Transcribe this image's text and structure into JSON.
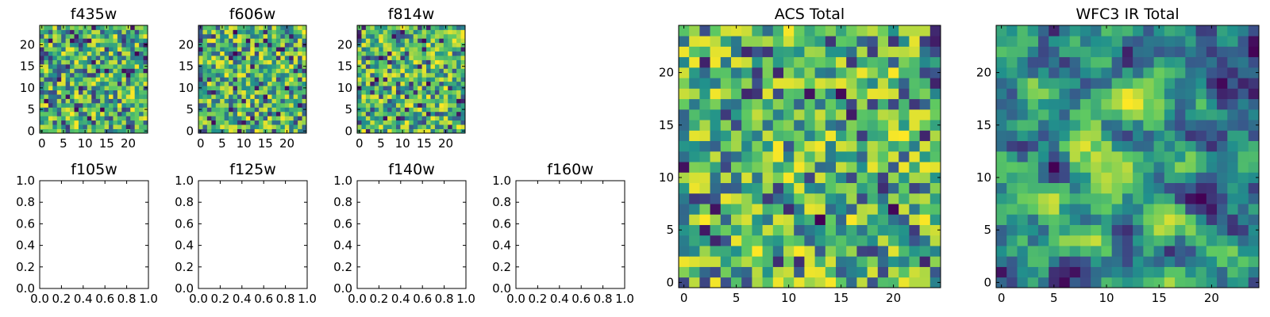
{
  "figure": {
    "colormap": [
      "#440154",
      "#3b528b",
      "#21918c",
      "#5ec962",
      "#fde725"
    ]
  },
  "chart_data": [
    {
      "type": "heatmap",
      "title": "f435w",
      "grid": [
        25,
        25
      ],
      "xlim": [
        -0.5,
        24.5
      ],
      "ylim": [
        -0.5,
        24.5
      ],
      "xticks": [
        {
          "v": 0,
          "label": "0"
        },
        {
          "v": 5,
          "label": "5"
        },
        {
          "v": 10,
          "label": "10"
        },
        {
          "v": 15,
          "label": "15"
        },
        {
          "v": 20,
          "label": "20"
        }
      ],
      "yticks": [
        {
          "v": 0,
          "label": "0"
        },
        {
          "v": 5,
          "label": "5"
        },
        {
          "v": 10,
          "label": "10"
        },
        {
          "v": 15,
          "label": "15"
        },
        {
          "v": 20,
          "label": "20"
        }
      ],
      "values": null
    },
    {
      "type": "heatmap",
      "title": "f606w",
      "grid": [
        25,
        25
      ],
      "xlim": [
        -0.5,
        24.5
      ],
      "ylim": [
        -0.5,
        24.5
      ],
      "xticks": [
        {
          "v": 0,
          "label": "0"
        },
        {
          "v": 5,
          "label": "5"
        },
        {
          "v": 10,
          "label": "10"
        },
        {
          "v": 15,
          "label": "15"
        },
        {
          "v": 20,
          "label": "20"
        }
      ],
      "yticks": [
        {
          "v": 0,
          "label": "0"
        },
        {
          "v": 5,
          "label": "5"
        },
        {
          "v": 10,
          "label": "10"
        },
        {
          "v": 15,
          "label": "15"
        },
        {
          "v": 20,
          "label": "20"
        }
      ],
      "values": null
    },
    {
      "type": "heatmap",
      "title": "f814w",
      "grid": [
        25,
        25
      ],
      "xlim": [
        -0.5,
        24.5
      ],
      "ylim": [
        -0.5,
        24.5
      ],
      "xticks": [
        {
          "v": 0,
          "label": "0"
        },
        {
          "v": 5,
          "label": "5"
        },
        {
          "v": 10,
          "label": "10"
        },
        {
          "v": 15,
          "label": "15"
        },
        {
          "v": 20,
          "label": "20"
        }
      ],
      "yticks": [
        {
          "v": 0,
          "label": "0"
        },
        {
          "v": 5,
          "label": "5"
        },
        {
          "v": 10,
          "label": "10"
        },
        {
          "v": 15,
          "label": "15"
        },
        {
          "v": 20,
          "label": "20"
        }
      ],
      "values": null
    },
    {
      "type": "empty",
      "title": "f105w",
      "xlim": [
        0,
        1
      ],
      "ylim": [
        0,
        1
      ],
      "xticks": [
        {
          "v": 0,
          "label": "0.0"
        },
        {
          "v": 0.2,
          "label": "0.2"
        },
        {
          "v": 0.4,
          "label": "0.4"
        },
        {
          "v": 0.6,
          "label": "0.6"
        },
        {
          "v": 0.8,
          "label": "0.8"
        },
        {
          "v": 1,
          "label": "1.0"
        }
      ],
      "yticks": [
        {
          "v": 0,
          "label": "0.0"
        },
        {
          "v": 0.2,
          "label": "0.2"
        },
        {
          "v": 0.4,
          "label": "0.4"
        },
        {
          "v": 0.6,
          "label": "0.6"
        },
        {
          "v": 0.8,
          "label": "0.8"
        },
        {
          "v": 1,
          "label": "1.0"
        }
      ]
    },
    {
      "type": "empty",
      "title": "f125w",
      "xlim": [
        0,
        1
      ],
      "ylim": [
        0,
        1
      ],
      "xticks": [
        {
          "v": 0,
          "label": "0.0"
        },
        {
          "v": 0.2,
          "label": "0.2"
        },
        {
          "v": 0.4,
          "label": "0.4"
        },
        {
          "v": 0.6,
          "label": "0.6"
        },
        {
          "v": 0.8,
          "label": "0.8"
        },
        {
          "v": 1,
          "label": "1.0"
        }
      ],
      "yticks": [
        {
          "v": 0,
          "label": "0.0"
        },
        {
          "v": 0.2,
          "label": "0.2"
        },
        {
          "v": 0.4,
          "label": "0.4"
        },
        {
          "v": 0.6,
          "label": "0.6"
        },
        {
          "v": 0.8,
          "label": "0.8"
        },
        {
          "v": 1,
          "label": "1.0"
        }
      ]
    },
    {
      "type": "empty",
      "title": "f140w",
      "xlim": [
        0,
        1
      ],
      "ylim": [
        0,
        1
      ],
      "xticks": [
        {
          "v": 0,
          "label": "0.0"
        },
        {
          "v": 0.2,
          "label": "0.2"
        },
        {
          "v": 0.4,
          "label": "0.4"
        },
        {
          "v": 0.6,
          "label": "0.6"
        },
        {
          "v": 0.8,
          "label": "0.8"
        },
        {
          "v": 1,
          "label": "1.0"
        }
      ],
      "yticks": [
        {
          "v": 0,
          "label": "0.0"
        },
        {
          "v": 0.2,
          "label": "0.2"
        },
        {
          "v": 0.4,
          "label": "0.4"
        },
        {
          "v": 0.6,
          "label": "0.6"
        },
        {
          "v": 0.8,
          "label": "0.8"
        },
        {
          "v": 1,
          "label": "1.0"
        }
      ]
    },
    {
      "type": "empty",
      "title": "f160w",
      "xlim": [
        0,
        1
      ],
      "ylim": [
        0,
        1
      ],
      "xticks": [
        {
          "v": 0,
          "label": "0.0"
        },
        {
          "v": 0.2,
          "label": "0.2"
        },
        {
          "v": 0.4,
          "label": "0.4"
        },
        {
          "v": 0.6,
          "label": "0.6"
        },
        {
          "v": 0.8,
          "label": "0.8"
        },
        {
          "v": 1,
          "label": "1.0"
        }
      ],
      "yticks": [
        {
          "v": 0,
          "label": "0.0"
        },
        {
          "v": 0.2,
          "label": "0.2"
        },
        {
          "v": 0.4,
          "label": "0.4"
        },
        {
          "v": 0.6,
          "label": "0.6"
        },
        {
          "v": 0.8,
          "label": "0.8"
        },
        {
          "v": 1,
          "label": "1.0"
        }
      ]
    },
    {
      "type": "heatmap",
      "title": "ACS Total",
      "grid": [
        25,
        25
      ],
      "xlim": [
        -0.5,
        24.5
      ],
      "ylim": [
        -0.5,
        24.5
      ],
      "xticks": [
        {
          "v": 0,
          "label": "0"
        },
        {
          "v": 5,
          "label": "5"
        },
        {
          "v": 10,
          "label": "10"
        },
        {
          "v": 15,
          "label": "15"
        },
        {
          "v": 20,
          "label": "20"
        }
      ],
      "yticks": [
        {
          "v": 0,
          "label": "0"
        },
        {
          "v": 5,
          "label": "5"
        },
        {
          "v": 10,
          "label": "10"
        },
        {
          "v": 15,
          "label": "15"
        },
        {
          "v": 20,
          "label": "20"
        }
      ],
      "values": null
    },
    {
      "type": "heatmap",
      "title": "WFC3 IR Total",
      "grid": [
        25,
        25
      ],
      "xlim": [
        -0.5,
        24.5
      ],
      "ylim": [
        -0.5,
        24.5
      ],
      "xticks": [
        {
          "v": 0,
          "label": "0"
        },
        {
          "v": 5,
          "label": "5"
        },
        {
          "v": 10,
          "label": "10"
        },
        {
          "v": 15,
          "label": "15"
        },
        {
          "v": 20,
          "label": "20"
        }
      ],
      "yticks": [
        {
          "v": 0,
          "label": "0"
        },
        {
          "v": 5,
          "label": "5"
        },
        {
          "v": 10,
          "label": "10"
        },
        {
          "v": 15,
          "label": "15"
        },
        {
          "v": 20,
          "label": "20"
        }
      ],
      "values": null
    }
  ]
}
